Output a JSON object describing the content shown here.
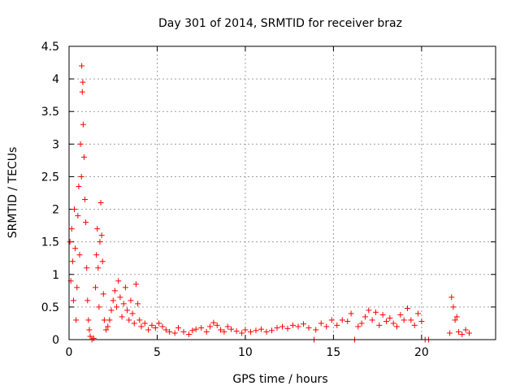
{
  "chart_data": {
    "type": "scatter",
    "title": "Day 301 of 2014, SRMTID for receiver braz",
    "xlabel": "GPS time / hours",
    "ylabel": "SRMTID / TECUs",
    "xlim": [
      0,
      24.2
    ],
    "ylim": [
      0,
      4.5
    ],
    "xticks": [
      0,
      5,
      10,
      15,
      20
    ],
    "xtick_labels": [
      "0",
      "5",
      "10",
      "15",
      "20"
    ],
    "yticks": [
      0,
      0.5,
      1,
      1.5,
      2,
      2.5,
      3,
      3.5,
      4,
      4.5
    ],
    "ytick_labels": [
      "0",
      "0.5",
      "1",
      "1.5",
      "2",
      "2.5",
      "3",
      "3.5",
      "4",
      "4.5"
    ],
    "grid": true,
    "marker": "plus",
    "color": "#ff0000",
    "series": [
      {
        "name": "SRMTID",
        "points": [
          [
            0.05,
            1.5
          ],
          [
            0.1,
            0.9
          ],
          [
            0.15,
            1.7
          ],
          [
            0.2,
            1.2
          ],
          [
            0.25,
            0.6
          ],
          [
            0.3,
            2.0
          ],
          [
            0.35,
            1.4
          ],
          [
            0.4,
            0.3
          ],
          [
            0.45,
            0.8
          ],
          [
            0.5,
            1.9
          ],
          [
            0.55,
            2.35
          ],
          [
            0.6,
            1.3
          ],
          [
            0.65,
            3.0
          ],
          [
            0.7,
            2.5
          ],
          [
            0.72,
            4.2
          ],
          [
            0.75,
            3.8
          ],
          [
            0.78,
            3.95
          ],
          [
            0.8,
            3.3
          ],
          [
            0.85,
            2.8
          ],
          [
            0.9,
            2.15
          ],
          [
            0.95,
            1.8
          ],
          [
            1.0,
            1.1
          ],
          [
            1.05,
            0.6
          ],
          [
            1.1,
            0.3
          ],
          [
            1.15,
            0.15
          ],
          [
            1.2,
            0.05
          ],
          [
            1.3,
            0.0
          ],
          [
            1.4,
            0.02
          ],
          [
            1.5,
            0.8
          ],
          [
            1.55,
            1.3
          ],
          [
            1.6,
            1.7
          ],
          [
            1.65,
            1.1
          ],
          [
            1.7,
            0.5
          ],
          [
            1.75,
            1.5
          ],
          [
            1.8,
            2.1
          ],
          [
            1.85,
            1.6
          ],
          [
            1.9,
            1.2
          ],
          [
            1.95,
            0.7
          ],
          [
            2.0,
            0.3
          ],
          [
            2.1,
            0.15
          ],
          [
            2.2,
            0.2
          ],
          [
            2.3,
            0.3
          ],
          [
            2.4,
            0.45
          ],
          [
            2.5,
            0.6
          ],
          [
            2.6,
            0.75
          ],
          [
            2.7,
            0.5
          ],
          [
            2.8,
            0.9
          ],
          [
            2.9,
            0.65
          ],
          [
            3.0,
            0.35
          ],
          [
            3.1,
            0.55
          ],
          [
            3.2,
            0.8
          ],
          [
            3.3,
            0.45
          ],
          [
            3.4,
            0.3
          ],
          [
            3.5,
            0.6
          ],
          [
            3.6,
            0.4
          ],
          [
            3.7,
            0.25
          ],
          [
            3.8,
            0.85
          ],
          [
            3.9,
            0.55
          ],
          [
            4.0,
            0.3
          ],
          [
            4.1,
            0.2
          ],
          [
            4.3,
            0.25
          ],
          [
            4.5,
            0.15
          ],
          [
            4.7,
            0.22
          ],
          [
            4.9,
            0.18
          ],
          [
            5.1,
            0.25
          ],
          [
            5.3,
            0.2
          ],
          [
            5.5,
            0.15
          ],
          [
            5.7,
            0.12
          ],
          [
            6.0,
            0.1
          ],
          [
            6.2,
            0.18
          ],
          [
            6.5,
            0.12
          ],
          [
            6.8,
            0.08
          ],
          [
            7.0,
            0.14
          ],
          [
            7.2,
            0.16
          ],
          [
            7.5,
            0.18
          ],
          [
            7.8,
            0.12
          ],
          [
            8.0,
            0.2
          ],
          [
            8.2,
            0.26
          ],
          [
            8.4,
            0.22
          ],
          [
            8.6,
            0.15
          ],
          [
            8.8,
            0.12
          ],
          [
            9.0,
            0.2
          ],
          [
            9.2,
            0.16
          ],
          [
            9.5,
            0.13
          ],
          [
            9.8,
            0.1
          ],
          [
            10.0,
            0.15
          ],
          [
            10.3,
            0.12
          ],
          [
            10.6,
            0.14
          ],
          [
            10.9,
            0.16
          ],
          [
            11.2,
            0.12
          ],
          [
            11.5,
            0.14
          ],
          [
            11.8,
            0.18
          ],
          [
            12.1,
            0.2
          ],
          [
            12.4,
            0.17
          ],
          [
            12.7,
            0.22
          ],
          [
            13.0,
            0.2
          ],
          [
            13.3,
            0.24
          ],
          [
            13.6,
            0.18
          ],
          [
            13.9,
            0.0
          ],
          [
            14.0,
            0.15
          ],
          [
            14.3,
            0.25
          ],
          [
            14.6,
            0.2
          ],
          [
            14.9,
            0.3
          ],
          [
            15.2,
            0.22
          ],
          [
            15.5,
            0.3
          ],
          [
            15.8,
            0.28
          ],
          [
            16.0,
            0.4
          ],
          [
            16.2,
            0.0
          ],
          [
            16.4,
            0.2
          ],
          [
            16.6,
            0.25
          ],
          [
            16.8,
            0.35
          ],
          [
            17.0,
            0.45
          ],
          [
            17.2,
            0.3
          ],
          [
            17.4,
            0.42
          ],
          [
            17.6,
            0.22
          ],
          [
            17.8,
            0.38
          ],
          [
            18.0,
            0.28
          ],
          [
            18.2,
            0.33
          ],
          [
            18.4,
            0.25
          ],
          [
            18.6,
            0.2
          ],
          [
            18.8,
            0.38
          ],
          [
            19.0,
            0.3
          ],
          [
            19.2,
            0.48
          ],
          [
            19.4,
            0.3
          ],
          [
            19.6,
            0.22
          ],
          [
            19.8,
            0.4
          ],
          [
            20.0,
            0.28
          ],
          [
            20.2,
            0.0
          ],
          [
            20.4,
            0.0
          ],
          [
            21.6,
            0.1
          ],
          [
            21.7,
            0.65
          ],
          [
            21.8,
            0.5
          ],
          [
            21.9,
            0.3
          ],
          [
            22.0,
            0.35
          ],
          [
            22.1,
            0.12
          ],
          [
            22.3,
            0.08
          ],
          [
            22.5,
            0.15
          ],
          [
            22.7,
            0.1
          ]
        ]
      }
    ]
  }
}
